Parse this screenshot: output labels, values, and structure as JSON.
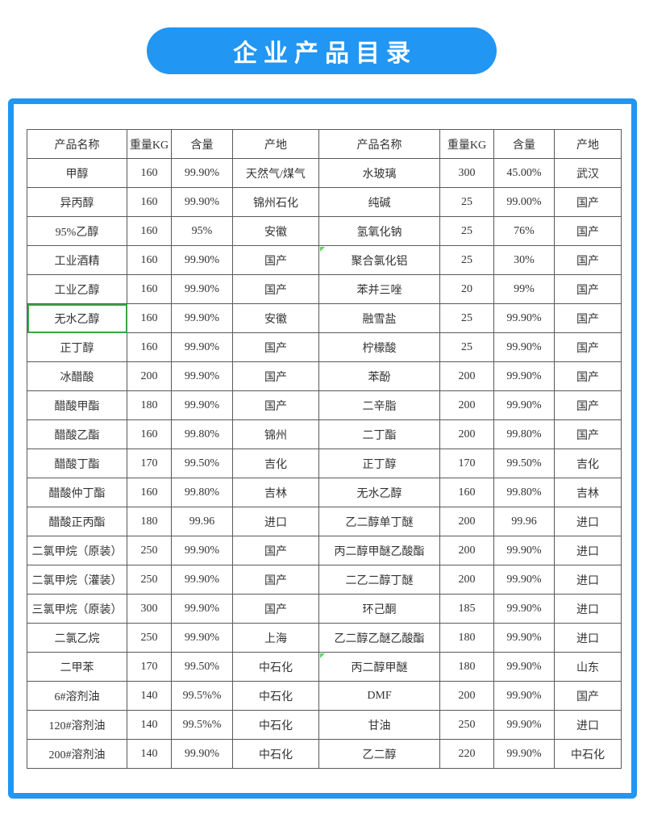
{
  "title": {
    "text": "企业产品目录"
  },
  "colors": {
    "accent_blue": "#2196F3",
    "table_border": "#595959",
    "text": "#333333",
    "green_mark": "#3ba345"
  },
  "table": {
    "columns": [
      "产品名称",
      "重量KG",
      "含量",
      "产地",
      "产品名称",
      "重量KG",
      "含量",
      "产地"
    ],
    "rows": [
      [
        "甲醇",
        "160",
        "99.90%",
        "天然气/煤气",
        "水玻璃",
        "300",
        "45.00%",
        "武汉"
      ],
      [
        "异丙醇",
        "160",
        "99.90%",
        "锦州石化",
        "纯碱",
        "25",
        "99.00%",
        "国产"
      ],
      [
        "95%乙醇",
        "160",
        "95%",
        "安徽",
        "氢氧化钠",
        "25",
        "76%",
        "国产"
      ],
      [
        "工业酒精",
        "160",
        "99.90%",
        "国产",
        "聚合氯化铝",
        "25",
        "30%",
        "国产"
      ],
      [
        "工业乙醇",
        "160",
        "99.90%",
        "国产",
        "苯并三唑",
        "20",
        "99%",
        "国产"
      ],
      [
        "无水乙醇",
        "160",
        "99.90%",
        "安徽",
        "融雪盐",
        "25",
        "99.90%",
        "国产"
      ],
      [
        "正丁醇",
        "160",
        "99.90%",
        "国产",
        "柠檬酸",
        "25",
        "99.90%",
        "国产"
      ],
      [
        "冰醋酸",
        "200",
        "99.90%",
        "国产",
        "苯酚",
        "200",
        "99.90%",
        "国产"
      ],
      [
        "醋酸甲酯",
        "180",
        "99.90%",
        "国产",
        "二辛脂",
        "200",
        "99.90%",
        "国产"
      ],
      [
        "醋酸乙酯",
        "160",
        "99.80%",
        "锦州",
        "二丁酯",
        "200",
        "99.80%",
        "国产"
      ],
      [
        "醋酸丁酯",
        "170",
        "99.50%",
        "吉化",
        "正丁醇",
        "170",
        "99.50%",
        "吉化"
      ],
      [
        "醋酸仲丁酯",
        "160",
        "99.80%",
        "吉林",
        "无水乙醇",
        "160",
        "99.80%",
        "吉林"
      ],
      [
        "醋酸正丙酯",
        "180",
        "99.96",
        "进口",
        "乙二醇单丁醚",
        "200",
        "99.96",
        "进口"
      ],
      [
        "二氯甲烷（原装）",
        "250",
        "99.90%",
        "国产",
        "丙二醇甲醚乙酸酯",
        "200",
        "99.90%",
        "进口"
      ],
      [
        "二氯甲烷（灌装）",
        "250",
        "99.90%",
        "国产",
        "二乙二醇丁醚",
        "200",
        "99.90%",
        "进口"
      ],
      [
        "三氯甲烷（原装）",
        "300",
        "99.90%",
        "国产",
        "环己酮",
        "185",
        "99.90%",
        "进口"
      ],
      [
        "二氯乙烷",
        "250",
        "99.90%",
        "上海",
        "乙二醇乙醚乙酸酯",
        "180",
        "99.90%",
        "进口"
      ],
      [
        "二甲苯",
        "170",
        "99.50%",
        "中石化",
        "丙二醇甲醚",
        "180",
        "99.90%",
        "山东"
      ],
      [
        "6#溶剂油",
        "140",
        "99.5%%",
        "中石化",
        "DMF",
        "200",
        "99.90%",
        "国产"
      ],
      [
        "120#溶剂油",
        "140",
        "99.5%%",
        "中石化",
        "甘油",
        "250",
        "99.90%",
        "进口"
      ],
      [
        "200#溶剂油",
        "140",
        "99.90%",
        "中石化",
        "乙二醇",
        "220",
        "99.90%",
        "中石化"
      ]
    ],
    "highlights": {
      "green_outline_cell": {
        "row": 5,
        "col": 0
      },
      "green_corner_cells": [
        {
          "row": 3,
          "col": 4
        },
        {
          "row": 17,
          "col": 4
        }
      ]
    }
  }
}
